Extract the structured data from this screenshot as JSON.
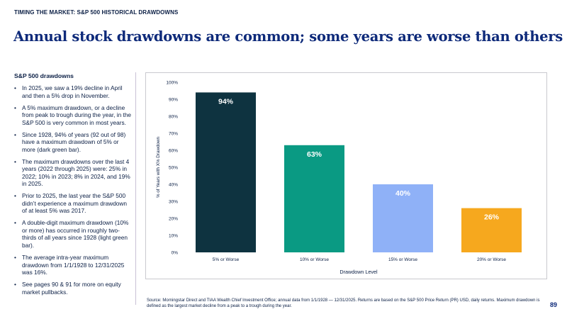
{
  "header": {
    "eyebrow": "TIMING THE MARKET: S&P 500 HISTORICAL DRAWDOWNS",
    "title": "Annual stock drawdowns are common; some years are worse than others"
  },
  "sidebar": {
    "heading": "S&P 500 drawdowns",
    "bullets": [
      "In 2025, we saw a 19% decline in April and then a 5% drop in November.",
      "A 5% maximum drawdown, or a decline from peak to trough during the year, in the S&P 500 is very common in most years.",
      "Since 1928, 94% of years (92 out of 98) have a maximum drawdown of 5% or more (dark green bar).",
      "The maximum drawdowns over the last 4 years (2022 through 2025) were: 25% in 2022; 10% in 2023; 8% in 2024, and 19% in 2025.",
      "Prior to 2025, the last year the S&P 500 didn’t experience a maximum drawdown of at least 5% was 2017.",
      "A double-digit maximum drawdown (10% or more) has occurred in roughly two-thirds of all years since 1928 (light green bar).",
      "The average intra-year maximum drawdown from 1/1/1928 to 12/31/2025 was 16%.",
      "See pages 90 & 91 for more on equity market pullbacks."
    ]
  },
  "chart_data": {
    "type": "bar",
    "categories": [
      "5% or Worse",
      "10% or Worse",
      "15% or Worse",
      "20% or Worse"
    ],
    "values": [
      94,
      63,
      40,
      26
    ],
    "data_labels": [
      "94%",
      "63%",
      "40%",
      "26%"
    ],
    "colors": [
      "#0e3340",
      "#0a9a83",
      "#8fb1f7",
      "#f6a81e"
    ],
    "label_colors": [
      "#ffffff",
      "#ffffff",
      "#ffffff",
      "#ffffff"
    ],
    "title": "",
    "xlabel": "Drawdown Level",
    "ylabel": "% of Years with X% Drawdown",
    "ylim": [
      0,
      100
    ],
    "yticks": [
      0,
      10,
      20,
      30,
      40,
      50,
      60,
      70,
      80,
      90,
      100
    ],
    "ytick_labels": [
      "0%",
      "10%",
      "20%",
      "30%",
      "40%",
      "50%",
      "60%",
      "70%",
      "80%",
      "90%",
      "100%"
    ],
    "grid": false,
    "legend": "none"
  },
  "footer": {
    "source": "Source: Morningstar Direct and TIAA Wealth Chief Investment Office; annual data from 1/1/1928 — 12/31/2025. Returns are based on the S&P 500 Price Return (PR) USD, daily returns. Maximum drawdown is defined as the largest market decline from a peak to a trough during the year.",
    "page_number": "89"
  }
}
